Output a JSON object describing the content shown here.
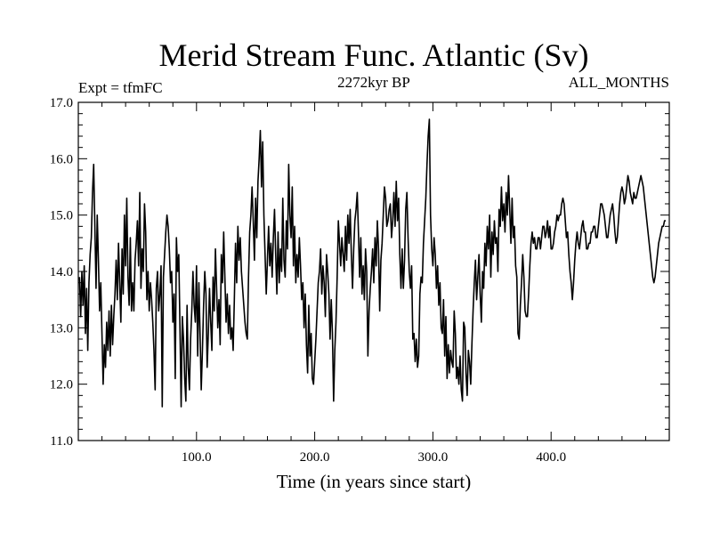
{
  "chart_data": {
    "type": "line",
    "title": "Merid Stream Func. Atlantic (Sv)",
    "experiment_label": "Expt = tfmFC",
    "period_label": "2272kyr BP",
    "months_label": "ALL_MONTHS",
    "xlabel": "Time (in years since start)",
    "ylabel": "",
    "xlim": [
      0,
      500
    ],
    "ylim": [
      11.0,
      17.0
    ],
    "x_ticks": [
      100,
      200,
      300,
      400
    ],
    "x_tick_labels": [
      "100.0",
      "200.0",
      "300.0",
      "400.0"
    ],
    "y_ticks": [
      11,
      12,
      13,
      14,
      15,
      16,
      17
    ],
    "y_tick_labels": [
      "11.0",
      "12.0",
      "13.0",
      "14.0",
      "15.0",
      "16.0",
      "17.0"
    ],
    "series": [
      {
        "name": "Merid Stream Func. Atlantic",
        "x_start": 1,
        "x_step": 1,
        "values": [
          13.9,
          13.2,
          14.0,
          13.4,
          14.1,
          12.9,
          13.7,
          12.6,
          13.8,
          14.3,
          14.6,
          15.4,
          15.9,
          14.8,
          13.7,
          15.0,
          14.2,
          13.3,
          13.8,
          12.9,
          12.0,
          12.7,
          12.3,
          13.1,
          12.6,
          13.3,
          12.5,
          13.4,
          12.7,
          13.2,
          13.6,
          14.2,
          13.5,
          14.5,
          13.8,
          13.1,
          14.4,
          13.6,
          15.0,
          14.1,
          15.3,
          13.9,
          13.4,
          14.6,
          13.3,
          13.8,
          13.3,
          14.2,
          14.5,
          14.9,
          14.1,
          15.4,
          13.7,
          14.4,
          14.0,
          15.2,
          14.7,
          13.5,
          14.0,
          13.3,
          13.8,
          13.5,
          13.1,
          12.6,
          11.9,
          13.7,
          14.0,
          13.3,
          13.6,
          14.1,
          11.6,
          13.9,
          14.3,
          14.7,
          15.0,
          14.8,
          14.4,
          13.8,
          14.0,
          13.1,
          13.6,
          12.1,
          14.6,
          14.0,
          14.3,
          13.0,
          11.6,
          13.2,
          12.8,
          12.1,
          11.7,
          13.4,
          12.3,
          11.9,
          12.8,
          13.3,
          14.0,
          13.4,
          13.1,
          14.1,
          12.5,
          13.8,
          12.9,
          11.9,
          12.6,
          13.4,
          14.0,
          13.6,
          12.3,
          12.9,
          13.7,
          13.1,
          12.6,
          13.9,
          13.3,
          14.4,
          13.7,
          13.0,
          13.5,
          12.7,
          14.3,
          13.8,
          14.7,
          13.9,
          13.1,
          13.6,
          12.9,
          13.4,
          12.8,
          13.0,
          12.6,
          13.5,
          14.5,
          13.8,
          14.8,
          14.2,
          14.6,
          14.0,
          13.7,
          13.4,
          13.1,
          12.9,
          12.8,
          13.9,
          14.7,
          15.0,
          15.5,
          14.9,
          14.2,
          15.3,
          14.6,
          15.6,
          16.0,
          16.5,
          15.5,
          16.3,
          15.0,
          14.3,
          13.6,
          14.2,
          14.8,
          14.1,
          14.5,
          13.9,
          14.6,
          15.1,
          14.3,
          13.6,
          14.7,
          13.8,
          14.4,
          14.0,
          15.3,
          14.2,
          13.9,
          14.9,
          14.4,
          15.9,
          15.0,
          14.6,
          15.5,
          14.1,
          14.8,
          13.8,
          14.3,
          13.9,
          14.6,
          14.1,
          13.5,
          13.8,
          13.0,
          13.6,
          12.7,
          12.2,
          13.4,
          12.5,
          12.9,
          12.1,
          12.0,
          12.4,
          12.8,
          13.3,
          13.8,
          14.0,
          14.4,
          13.6,
          14.1,
          13.8,
          13.2,
          14.3,
          14.0,
          13.6,
          12.8,
          13.5,
          12.9,
          11.7,
          12.6,
          13.1,
          13.9,
          14.9,
          14.5,
          14.1,
          14.6,
          14.3,
          14.0,
          14.8,
          14.2,
          15.0,
          14.5,
          15.1,
          14.3,
          13.7,
          14.4,
          14.9,
          15.1,
          15.4,
          14.7,
          13.9,
          14.6,
          13.6,
          14.1,
          13.5,
          14.4,
          14.0,
          12.5,
          13.3,
          13.7,
          14.0,
          14.4,
          13.8,
          14.6,
          14.1,
          14.9,
          14.4,
          13.3,
          14.2,
          14.5,
          15.0,
          15.5,
          15.3,
          14.8,
          14.9,
          15.1,
          15.2,
          14.6,
          14.9,
          15.4,
          14.8,
          15.6,
          14.9,
          15.3,
          14.3,
          13.7,
          14.4,
          13.7,
          14.2,
          15.1,
          15.4,
          14.6,
          14.0,
          13.7,
          14.1,
          12.8,
          12.9,
          12.4,
          12.8,
          12.3,
          12.5,
          13.6,
          13.9,
          13.8,
          14.5,
          14.9,
          15.3,
          15.9,
          16.4,
          16.7,
          15.0,
          14.4,
          14.1,
          14.6,
          14.3,
          13.7,
          14.1,
          13.4,
          13.8,
          13.0,
          12.9,
          13.5,
          12.5,
          13.2,
          12.1,
          12.7,
          12.2,
          12.6,
          12.4,
          12.3,
          13.3,
          12.9,
          12.1,
          12.3,
          12.0,
          12.5,
          11.9,
          11.7,
          13.1,
          13.0,
          12.2,
          11.8,
          12.6,
          12.4,
          12.0,
          12.7,
          13.3,
          13.8,
          14.2,
          13.5,
          13.9,
          14.3,
          13.6,
          13.1,
          14.0,
          13.7,
          14.5,
          14.1,
          14.8,
          14.4,
          15.0,
          13.9,
          14.7,
          14.3,
          14.9,
          14.5,
          14.6,
          14.0,
          15.1,
          14.8,
          15.5,
          14.9,
          15.2,
          14.7,
          15.4,
          15.0,
          15.7,
          15.1,
          14.5,
          15.3,
          14.6,
          14.8,
          14.1,
          13.9,
          12.9,
          12.8,
          13.4,
          13.8,
          14.3,
          13.9,
          13.3,
          13.2,
          13.2,
          13.6,
          14.1,
          14.5,
          14.7,
          14.5,
          14.6,
          14.4,
          14.4,
          14.6,
          14.6,
          14.4,
          14.6,
          14.8,
          14.8,
          14.6,
          14.7,
          14.9,
          14.6,
          14.8,
          14.4,
          14.4,
          14.5,
          14.7,
          14.8,
          15.0,
          14.9,
          15.0,
          15.0,
          15.2,
          15.3,
          15.2,
          14.9,
          14.6,
          14.7,
          14.3,
          14.0,
          13.8,
          13.5,
          13.8,
          14.2,
          14.5,
          14.7,
          14.5,
          14.4,
          14.6,
          14.8,
          14.9,
          14.7,
          14.7,
          14.4,
          14.4,
          14.5,
          14.5,
          14.7,
          14.7,
          14.8,
          14.8,
          14.6,
          14.6,
          14.8,
          15.0,
          15.2,
          15.2,
          15.1,
          15.0,
          14.8,
          14.6,
          14.6,
          14.8,
          15.0,
          15.1,
          15.2,
          15.0,
          14.7,
          14.5,
          14.6,
          14.9,
          15.2,
          15.4,
          15.5,
          15.4,
          15.2,
          15.3,
          15.5,
          15.7,
          15.6,
          15.4,
          15.3,
          15.2,
          15.4,
          15.3,
          15.3,
          15.4,
          15.5,
          15.6,
          15.7,
          15.6,
          15.5,
          15.3,
          15.1,
          14.9,
          14.7,
          14.5,
          14.3,
          14.1,
          13.9,
          13.8,
          13.9,
          14.1,
          14.3,
          14.5,
          14.6,
          14.7,
          14.8,
          14.8,
          14.9,
          14.9
        ]
      }
    ],
    "grid": false,
    "legend": "none"
  }
}
